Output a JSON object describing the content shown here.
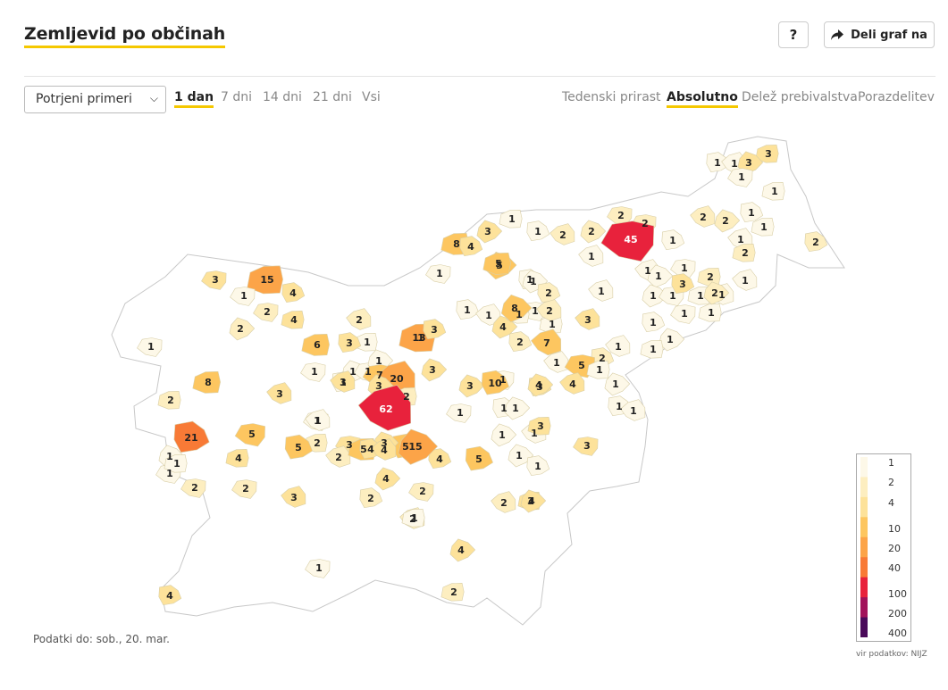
{
  "header": {
    "title": "Zemljevid po občinah",
    "help_label": "?",
    "share_label": "Deli graf na",
    "share_icon": "share-arrow-icon"
  },
  "controls": {
    "measure_select": "Potrjeni primeri",
    "periods": [
      "1 dan",
      "7 dni",
      "14 dni",
      "21 dni",
      "Vsi"
    ],
    "active_period": "1 dan",
    "modes": [
      "Tedenski prirast",
      "Absolutno",
      "Delež prebivalstva",
      "Porazdelitev"
    ],
    "active_mode": "Absolutno"
  },
  "map": {
    "values": [
      3,
      1,
      1,
      3,
      1,
      1,
      1,
      2,
      2,
      2,
      1,
      2,
      1,
      2,
      2,
      1,
      1,
      2,
      3,
      45,
      2,
      1,
      1,
      1,
      1,
      8,
      4,
      1,
      5,
      1,
      2,
      1,
      1,
      1,
      1,
      1,
      1,
      1,
      4,
      1,
      5,
      3,
      1,
      1,
      1,
      1,
      2,
      1,
      2,
      2,
      1,
      1,
      3,
      1,
      3,
      15,
      4,
      2,
      2,
      1,
      1,
      2,
      7,
      8,
      1,
      1,
      2,
      1,
      1,
      1,
      1,
      3,
      1,
      1,
      1,
      6,
      1,
      1,
      1,
      1,
      13,
      3,
      2,
      3,
      7,
      4,
      1,
      20,
      3,
      5,
      1,
      1,
      3,
      3,
      1,
      8,
      3,
      3,
      1,
      3,
      2,
      10,
      4,
      4,
      1,
      2,
      4,
      62,
      1,
      1,
      2,
      5,
      1,
      1,
      3,
      3,
      21,
      1,
      1,
      2,
      3,
      5,
      2,
      3,
      5,
      5,
      4,
      4,
      15,
      2,
      4,
      5,
      2,
      4,
      1,
      1,
      2,
      2,
      4,
      2,
      1,
      1,
      3,
      4,
      1,
      2,
      4,
      4,
      1,
      1,
      1
    ]
  },
  "legend": {
    "ticks": [
      "1",
      "2",
      "4",
      "10",
      "20",
      "40",
      "100",
      "200",
      "400"
    ],
    "colors": [
      "#fdf8e8",
      "#fdeec0",
      "#fde29a",
      "#fdc660",
      "#fca448",
      "#f87a36",
      "#e8223c",
      "#a2125a",
      "#4a0a5a"
    ]
  },
  "footer": {
    "data_date": "Podatki do: sob., 20. mar.",
    "source": "vir podatkov: NIJZ"
  }
}
